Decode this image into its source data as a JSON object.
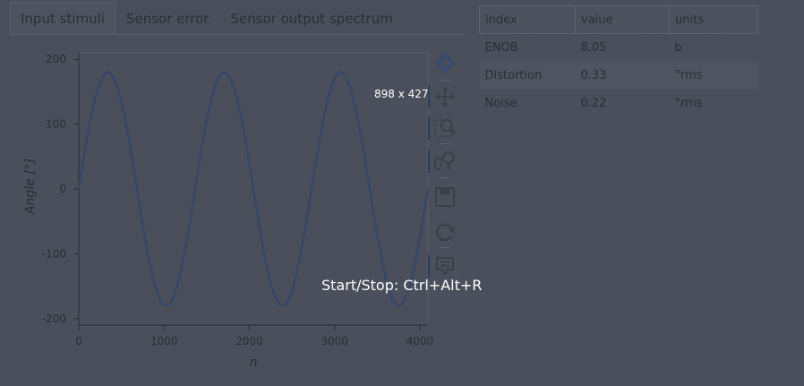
{
  "tabs": [
    {
      "label": "Input stimuli",
      "active": true
    },
    {
      "label": "Sensor error",
      "active": false
    },
    {
      "label": "Sensor output spectrum",
      "active": false
    }
  ],
  "chart_data": {
    "type": "line",
    "xlabel": "n",
    "ylabel": "Angle [°]",
    "xlim": [
      0,
      4096
    ],
    "ylim": [
      -210,
      210
    ],
    "xticks": [
      0,
      1000,
      2000,
      3000,
      4000
    ],
    "yticks": [
      -200,
      -100,
      0,
      100,
      200
    ],
    "grid": false,
    "series": [
      {
        "amplitude": 180,
        "period": 1365,
        "phase_start_value": 0,
        "x_start": 0,
        "x_end": 4096,
        "color": "#36476a"
      }
    ]
  },
  "toolbar": {
    "tools": [
      {
        "icon": "bokeh-logo-icon"
      },
      {
        "icon": "pan-icon"
      },
      {
        "icon": "box-zoom-icon"
      },
      {
        "icon": "wheel-zoom-icon"
      },
      {
        "icon": "save-icon"
      },
      {
        "icon": "reset-icon"
      },
      {
        "icon": "hover-icon"
      }
    ]
  },
  "table": {
    "headers": [
      "index",
      "value",
      "units"
    ],
    "rows": [
      {
        "index": "ENOB",
        "value": "8.05",
        "units": "b"
      },
      {
        "index": "Distortion",
        "value": "0.33",
        "units": "°rms"
      },
      {
        "index": "Noise",
        "value": "0.22",
        "units": "°rms"
      }
    ]
  },
  "overlay": {
    "size_label": "898 x 427",
    "hint": "Start/Stop: Ctrl+Alt+R"
  }
}
